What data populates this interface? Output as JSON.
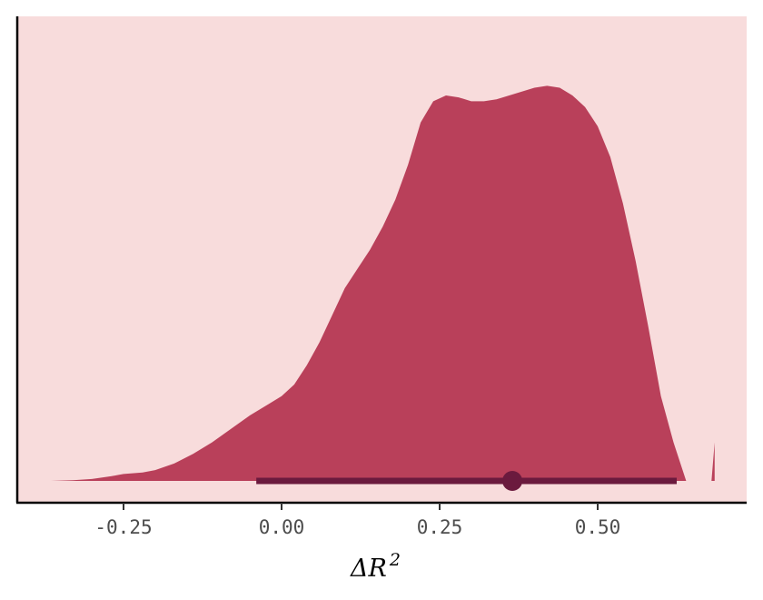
{
  "chart_data": {
    "type": "area",
    "subtype": "half-eye density with point interval",
    "title": "",
    "xlabel": "ΔR",
    "xlabel_superscript": "2",
    "ylabel": "",
    "xlim": [
      -0.415,
      0.735
    ],
    "xticks": [
      -0.25,
      0.0,
      0.25,
      0.5
    ],
    "xtick_labels": [
      "-0.25",
      "0.00",
      "0.25",
      "0.50"
    ],
    "y_axis_ticks_shown": false,
    "grid": false,
    "legend": "none",
    "colors": {
      "panel_background": "#f8dcdc",
      "density_fill": "#b9405a",
      "interval": "#6b1a3e",
      "axis_line": "#000000",
      "tick_label": "#4d4d4d"
    },
    "density": {
      "x": [
        -0.365,
        -0.33,
        -0.3,
        -0.27,
        -0.25,
        -0.22,
        -0.2,
        -0.17,
        -0.14,
        -0.11,
        -0.08,
        -0.05,
        -0.02,
        0.0,
        0.02,
        0.04,
        0.06,
        0.08,
        0.1,
        0.12,
        0.14,
        0.16,
        0.18,
        0.2,
        0.22,
        0.24,
        0.26,
        0.28,
        0.3,
        0.32,
        0.34,
        0.36,
        0.38,
        0.4,
        0.42,
        0.44,
        0.46,
        0.48,
        0.5,
        0.52,
        0.54,
        0.56,
        0.58,
        0.6,
        0.62,
        0.64,
        0.66,
        0.68
      ],
      "y": [
        0.0,
        0.002,
        0.005,
        0.012,
        0.018,
        0.022,
        0.028,
        0.045,
        0.07,
        0.1,
        0.135,
        0.17,
        0.2,
        0.22,
        0.25,
        0.3,
        0.36,
        0.43,
        0.5,
        0.55,
        0.6,
        0.66,
        0.73,
        0.82,
        0.93,
        0.985,
        1.0,
        0.995,
        0.985,
        0.985,
        0.99,
        1.0,
        1.01,
        1.02,
        1.025,
        1.02,
        1.0,
        0.97,
        0.92,
        0.84,
        0.72,
        0.57,
        0.4,
        0.22,
        0.1,
        0.0,
        0.0,
        0.0
      ],
      "note_x": "",
      "right_edge_x": 0.685,
      "right_edge_y": 0.1
    },
    "point_interval": {
      "point": 0.365,
      "lower": -0.04,
      "upper": 0.625
    }
  }
}
